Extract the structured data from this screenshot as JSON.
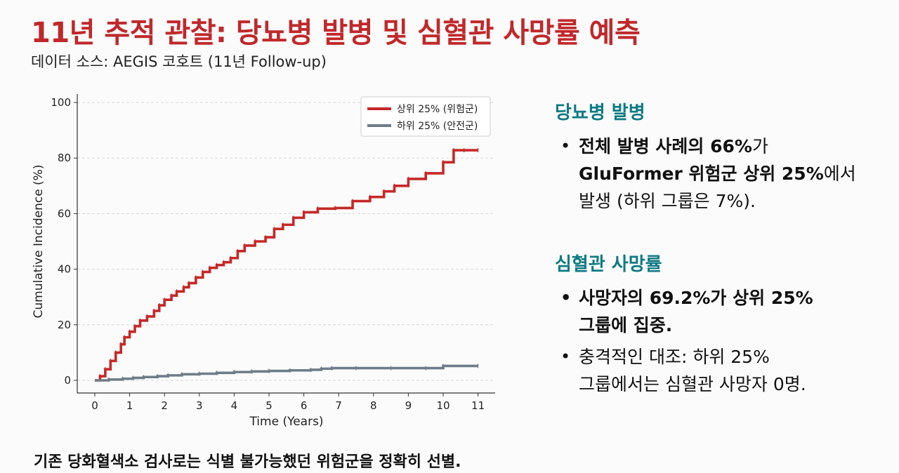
{
  "header": {
    "title": "11년 추적 관찰: 당뇨병 발병 및 심혈관 사망률 예측",
    "subtitle": "데이터 소스: AEGIS 코호트 (11년 Follow-up)"
  },
  "colors": {
    "title": "#c0282b",
    "accent": "#0f7a83",
    "high_risk": "#c62828",
    "low_risk": "#6f7d89"
  },
  "chart_data": {
    "type": "line",
    "step": true,
    "xlabel": "Time (Years)",
    "ylabel": "Cumulative Incidence (%)",
    "xlim": [
      0,
      11
    ],
    "ylim": [
      0,
      100
    ],
    "xticks": [
      0,
      1,
      2,
      3,
      4,
      5,
      6,
      7,
      8,
      9,
      10,
      11
    ],
    "yticks": [
      0,
      20,
      40,
      60,
      80,
      100
    ],
    "grid": true,
    "legend_position": "top-right",
    "series": [
      {
        "name": "상위 25% (위험군)",
        "color": "#c62828",
        "x": [
          0,
          0.15,
          0.3,
          0.45,
          0.6,
          0.75,
          0.85,
          1.0,
          1.15,
          1.3,
          1.5,
          1.7,
          1.85,
          2.0,
          2.2,
          2.35,
          2.55,
          2.7,
          2.9,
          3.1,
          3.3,
          3.5,
          3.7,
          3.9,
          4.1,
          4.3,
          4.6,
          4.9,
          5.15,
          5.4,
          5.7,
          6.0,
          6.4,
          6.9,
          7.4,
          7.9,
          8.3,
          8.6,
          9.0,
          9.5,
          10.0,
          10.3,
          10.6,
          11.0
        ],
        "y": [
          0,
          1.5,
          4,
          7,
          10,
          13,
          15.5,
          17.5,
          19.5,
          21.5,
          23,
          25,
          27,
          29,
          30.5,
          32,
          33.5,
          35,
          37,
          39,
          40.5,
          41.5,
          42.5,
          44,
          46.5,
          48.5,
          50,
          51.5,
          54.5,
          56,
          58.5,
          60.5,
          61.8,
          62,
          64.5,
          66,
          68,
          70,
          72.5,
          74.5,
          78.5,
          82.8,
          82.8,
          82.8
        ]
      },
      {
        "name": "하위 25% (안전군)",
        "color": "#6f7d89",
        "x": [
          0,
          0.4,
          0.8,
          1.1,
          1.4,
          1.8,
          2.1,
          2.5,
          3.0,
          3.5,
          4.0,
          4.5,
          5.0,
          5.6,
          6.2,
          6.5,
          6.8,
          7.5,
          8.5,
          9.5,
          10.0,
          11.0
        ],
        "y": [
          0,
          0.3,
          0.6,
          0.9,
          1.2,
          1.5,
          1.8,
          2.2,
          2.4,
          2.7,
          3.0,
          3.2,
          3.4,
          3.6,
          3.8,
          4.2,
          4.4,
          4.4,
          4.4,
          4.4,
          5.2,
          5.2
        ]
      }
    ]
  },
  "panel": {
    "diabetes": {
      "heading": "당뇨병 발병",
      "line1_bold": "전체 발병 사례의 66%",
      "line1_rest": "가",
      "line2_bold": "GluFormer 위험군 상위 25%",
      "line2_rest": "에서",
      "line3": "발생 (하위 그룹은 7%)."
    },
    "cv": {
      "heading": "심혈관 사망률",
      "b1_line1": "사망자의 69.2%가 상위 25%",
      "b1_line2": "그룹에 집중.",
      "b2_line1": "충격적인 대조: 하위 25%",
      "b2_line2": "그룹에서는 심혈관 사망자 0명."
    }
  },
  "footer": "기존 당화혈색소 검사로는 식별 불가능했던 위험군을 정확히 선별."
}
